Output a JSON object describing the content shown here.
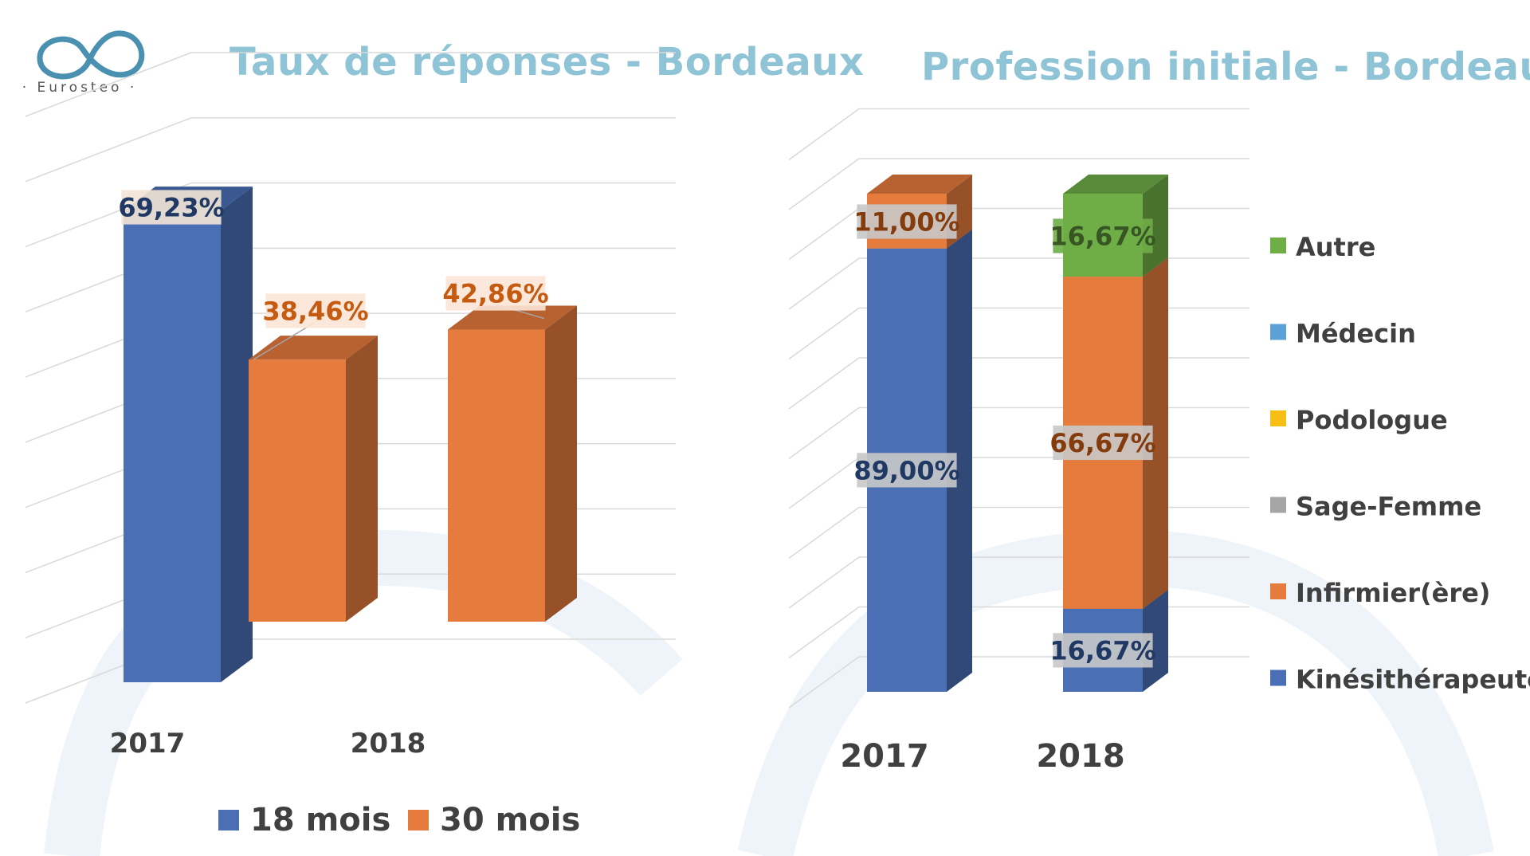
{
  "logo": {
    "brand_text": "· Eurosteo ·",
    "colors": {
      "primary": "#4a90b0",
      "secondary": "#8fc4d6"
    }
  },
  "colors": {
    "title": "#8fc4d6",
    "grid": "#d9d9d9",
    "axis_label": "#404040",
    "watermark": "#eef4f9",
    "series_18": "#4a6fb5",
    "series_30": "#e57b3c",
    "kine": "#4a6fb5",
    "infirmier": "#e57b3c",
    "sage_femme": "#a5a5a5",
    "podologue": "#f7be16",
    "medecin": "#5ba1d6",
    "autre": "#6fad47"
  },
  "charts": {
    "left": {
      "title": "Taux de réponses - Bordeaux",
      "legend": [
        {
          "label": "18 mois",
          "color": "#4a6fb5"
        },
        {
          "label": "30 mois",
          "color": "#e57b3c"
        }
      ]
    },
    "right": {
      "title": "Profession initiale - Bordeaux",
      "legend": [
        {
          "label": "Autre",
          "color": "#6fad47"
        },
        {
          "label": "Médecin",
          "color": "#5ba1d6"
        },
        {
          "label": "Podologue",
          "color": "#f7be16"
        },
        {
          "label": "Sage-Femme",
          "color": "#a5a5a5"
        },
        {
          "label": "Infirmier(ère)",
          "color": "#e57b3c"
        },
        {
          "label": "Kinésithérapeute",
          "color": "#4a6fb5"
        }
      ]
    }
  },
  "chart_data": [
    {
      "type": "bar",
      "title": "Taux de réponses - Bordeaux",
      "categories": [
        "2017",
        "2018"
      ],
      "series": [
        {
          "name": "18 mois",
          "values": [
            69.23,
            null
          ],
          "labels": [
            "69,23%",
            ""
          ]
        },
        {
          "name": "30 mois",
          "values": [
            38.46,
            42.86
          ],
          "labels": [
            "38,46%",
            "42,86%"
          ]
        }
      ],
      "ylim": [
        0,
        80
      ],
      "grid": true,
      "legend_position": "bottom"
    },
    {
      "type": "bar",
      "stacked": true,
      "title": "Profession initiale - Bordeaux",
      "categories": [
        "2017",
        "2018"
      ],
      "series": [
        {
          "name": "Kinésithérapeute",
          "values": [
            89.0,
            16.67
          ],
          "labels": [
            "89,00%",
            "16,67%"
          ]
        },
        {
          "name": "Infirmier(ère)",
          "values": [
            11.0,
            66.67
          ],
          "labels": [
            "11,00%",
            "66,67%"
          ]
        },
        {
          "name": "Sage-Femme",
          "values": [
            0,
            0
          ],
          "labels": [
            "",
            ""
          ]
        },
        {
          "name": "Podologue",
          "values": [
            0,
            0
          ],
          "labels": [
            "",
            ""
          ]
        },
        {
          "name": "Médecin",
          "values": [
            0,
            0
          ],
          "labels": [
            "",
            ""
          ]
        },
        {
          "name": "Autre",
          "values": [
            0,
            16.67
          ],
          "labels": [
            "",
            "16,67%"
          ]
        }
      ],
      "ylim": [
        0,
        100
      ],
      "grid": true,
      "legend_position": "right"
    }
  ]
}
